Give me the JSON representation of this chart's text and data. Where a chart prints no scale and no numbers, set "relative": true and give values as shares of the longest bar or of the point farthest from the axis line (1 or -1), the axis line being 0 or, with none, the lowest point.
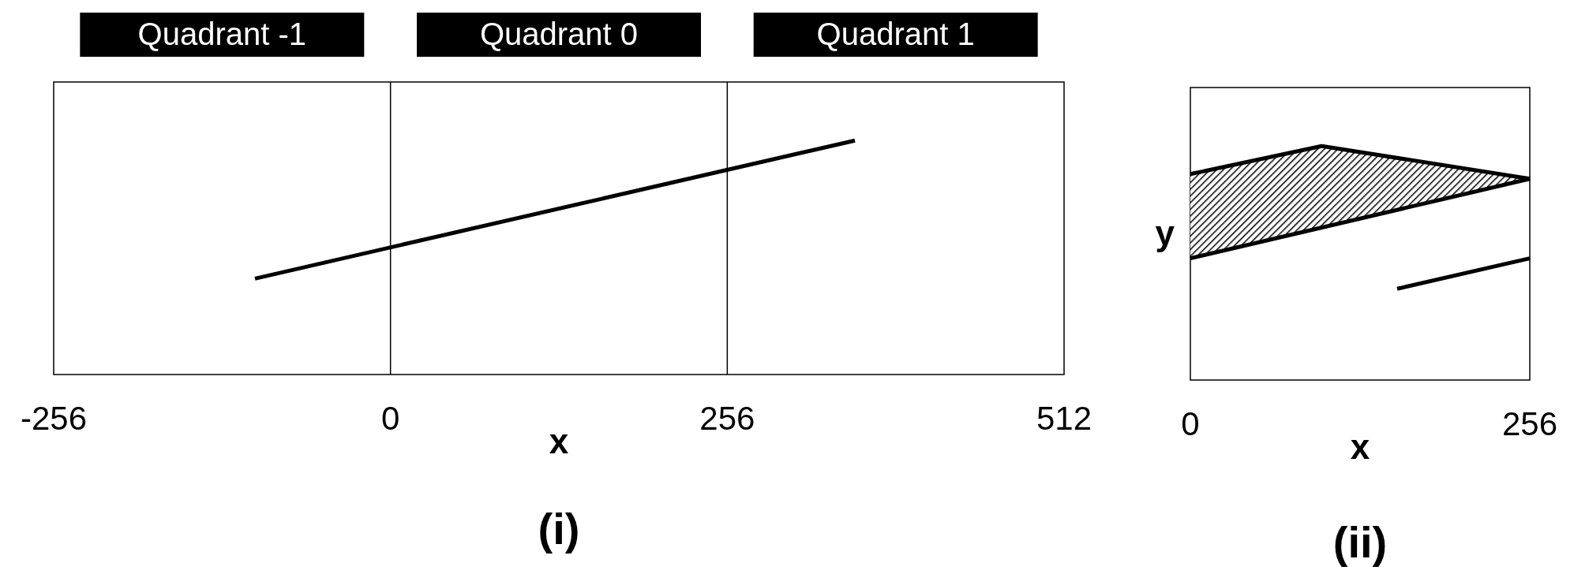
{
  "chart_data": [
    {
      "type": "line",
      "title": "(i)",
      "xlabel": "x",
      "relative": true,
      "xlim": [
        -256,
        512
      ],
      "xticks": [
        -256,
        0,
        256,
        512
      ],
      "annotations": [
        "Quadrant -1",
        "Quadrant 0",
        "Quadrant 1"
      ],
      "ref_lines": [
        {
          "axis": "x",
          "value": 0
        },
        {
          "axis": "x",
          "value": 256
        }
      ],
      "series": [
        {
          "color": "#000000",
          "x": [
            -103,
            353
          ],
          "values": [
            0.41,
            1
          ]
        }
      ]
    },
    {
      "type": "line",
      "title": "(ii)",
      "xlabel": "x",
      "ylabel": "y",
      "relative": true,
      "xlim": [
        0,
        256
      ],
      "xticks": [
        0,
        256
      ],
      "series": [
        {
          "type": "area",
          "color": "#000000",
          "x": [
            0,
            99,
            256
          ],
          "values": [
            0.88,
            1,
            0.86
          ]
        },
        {
          "color": "#000000",
          "x": [
            0,
            256
          ],
          "values": [
            0.52,
            0.86
          ]
        },
        {
          "color": "#000000",
          "x": [
            156,
            256
          ],
          "values": [
            0.39,
            0.52
          ]
        }
      ]
    }
  ]
}
